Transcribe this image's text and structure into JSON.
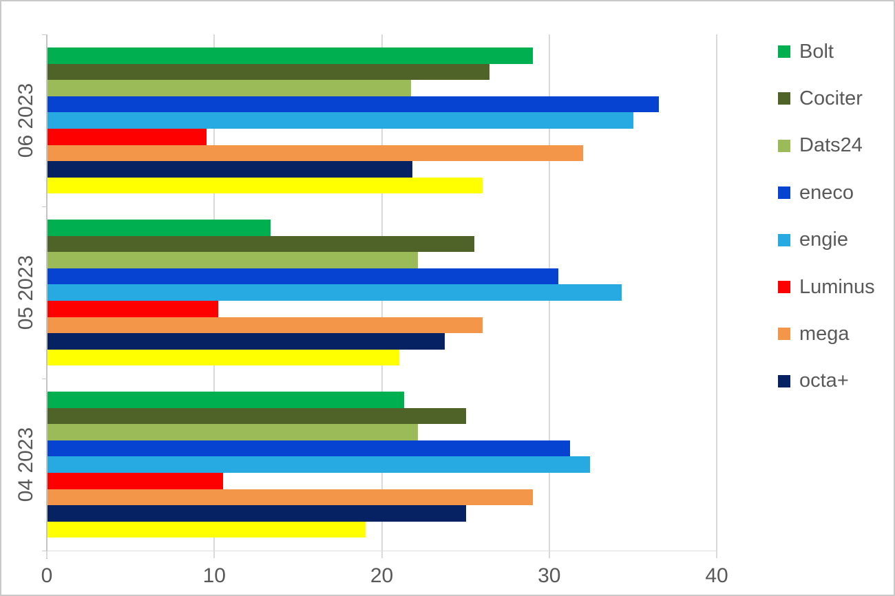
{
  "theme": {
    "background": "#FFFFFF",
    "border_color": "#C9C9C9",
    "text_color": "#595959",
    "gridline_color": "#D9D9D9",
    "axis_color": "#C3C3C3"
  },
  "chart_data": {
    "type": "bar",
    "orientation": "horizontal",
    "title": "",
    "xlabel": "",
    "ylabel": "",
    "categories": [
      "06 2023",
      "05 2023",
      "04 2023"
    ],
    "series": [
      {
        "name": "Bolt",
        "color": "#00B050",
        "in_legend": true,
        "values": [
          29.0,
          13.3,
          21.3
        ]
      },
      {
        "name": "Cociter",
        "color": "#4F6228",
        "in_legend": true,
        "values": [
          26.4,
          25.5,
          25.0
        ]
      },
      {
        "name": "Dats24",
        "color": "#9BBB59",
        "in_legend": true,
        "values": [
          21.7,
          22.1,
          22.1
        ]
      },
      {
        "name": "eneco",
        "color": "#0543D0",
        "in_legend": true,
        "values": [
          36.5,
          30.5,
          31.2
        ]
      },
      {
        "name": "engie",
        "color": "#27AAE1",
        "in_legend": true,
        "values": [
          35.0,
          34.3,
          32.4
        ]
      },
      {
        "name": "Luminus",
        "color": "#FF0000",
        "in_legend": true,
        "values": [
          9.5,
          10.2,
          10.5
        ]
      },
      {
        "name": "mega",
        "color": "#F4964A",
        "in_legend": true,
        "values": [
          32.0,
          26.0,
          29.0
        ]
      },
      {
        "name": "octa+",
        "color": "#062262",
        "in_legend": true,
        "values": [
          21.8,
          23.7,
          25.0
        ]
      },
      {
        "name": "",
        "color": "#FFFF00",
        "in_legend": false,
        "values": [
          26.0,
          21.0,
          19.0
        ]
      }
    ],
    "xlim": [
      0,
      40
    ],
    "x_ticks": [
      0,
      10,
      20,
      30,
      40
    ],
    "grid": "vertical-only",
    "legend_position": "right"
  }
}
